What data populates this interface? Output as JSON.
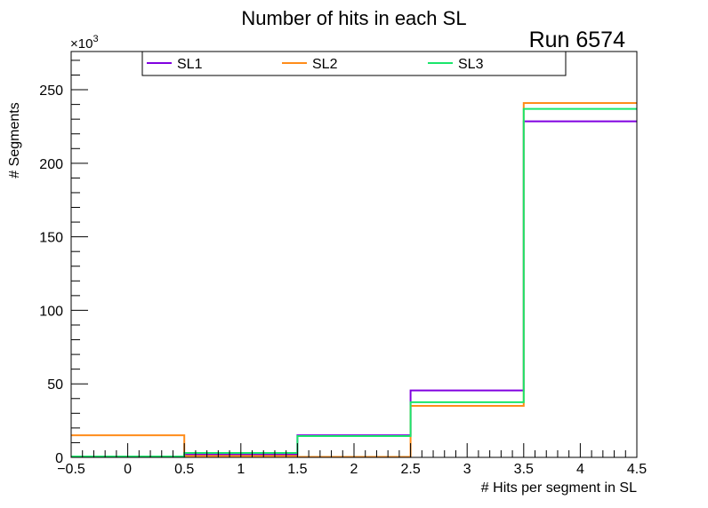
{
  "chart_data": {
    "type": "histogram",
    "title": "Number of hits in each SL",
    "annotation": "Run 6574",
    "xlabel": "# Hits per segment in SL",
    "ylabel": "# Segments",
    "y_multiplier_base": "×10",
    "y_multiplier_exp": "3",
    "xlim": [
      -0.5,
      4.5
    ],
    "ylim": [
      0,
      276
    ],
    "x_ticks": [
      -0.5,
      0,
      0.5,
      1,
      1.5,
      2,
      2.5,
      3,
      3.5,
      4,
      4.5
    ],
    "x_tick_labels": [
      "−0.5",
      "0",
      "0.5",
      "1",
      "1.5",
      "2",
      "2.5",
      "3",
      "3.5",
      "4",
      "4.5"
    ],
    "y_ticks": [
      0,
      50,
      100,
      150,
      200,
      250
    ],
    "y_tick_labels": [
      "0",
      "50",
      "100",
      "150",
      "200",
      "250"
    ],
    "bin_edges": [
      -0.5,
      0.5,
      1.5,
      2.5,
      3.5,
      4.5
    ],
    "series": [
      {
        "name": "SL1",
        "color": "#8000e0",
        "values": [
          0.5,
          2.0,
          15.0,
          45.5,
          228.5
        ]
      },
      {
        "name": "SL2",
        "color": "#ff8c1a",
        "values": [
          15.0,
          1.0,
          0.3,
          35.0,
          241.0
        ]
      },
      {
        "name": "SL3",
        "color": "#1ae66b",
        "values": [
          0.6,
          3.0,
          14.5,
          37.5,
          237.0
        ]
      }
    ]
  }
}
